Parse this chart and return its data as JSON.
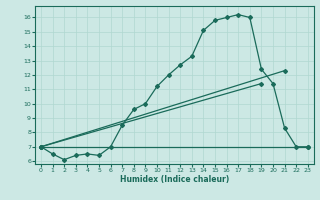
{
  "title": "",
  "xlabel": "Humidex (Indice chaleur)",
  "bg_color": "#cce8e4",
  "line_color": "#1a6b5a",
  "grid_color": "#b0d8d0",
  "xlim": [
    -0.5,
    23.5
  ],
  "ylim": [
    5.8,
    16.8
  ],
  "yticks": [
    6,
    7,
    8,
    9,
    10,
    11,
    12,
    13,
    14,
    15,
    16
  ],
  "xticks": [
    0,
    1,
    2,
    3,
    4,
    5,
    6,
    7,
    8,
    9,
    10,
    11,
    12,
    13,
    14,
    15,
    16,
    17,
    18,
    19,
    20,
    21,
    22,
    23
  ],
  "line1_x": [
    0,
    1,
    2,
    3,
    4,
    5,
    6,
    7,
    8,
    9,
    10,
    11,
    12,
    13,
    14,
    15,
    16,
    17,
    18,
    19,
    20,
    21,
    22,
    23
  ],
  "line1_y": [
    7.0,
    6.5,
    6.1,
    6.4,
    6.5,
    6.4,
    7.0,
    8.5,
    9.6,
    10.0,
    11.2,
    12.0,
    12.7,
    13.3,
    15.1,
    15.8,
    16.0,
    16.2,
    16.0,
    12.4,
    11.4,
    8.3,
    7.0,
    7.0
  ],
  "line2_x": [
    0,
    23
  ],
  "line2_y": [
    7.0,
    7.0
  ],
  "line3_x": [
    0,
    19
  ],
  "line3_y": [
    7.0,
    11.4
  ],
  "line4_x": [
    0,
    21
  ],
  "line4_y": [
    7.0,
    12.3
  ]
}
